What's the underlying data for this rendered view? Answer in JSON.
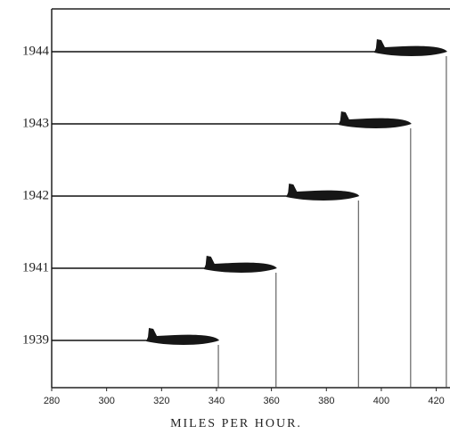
{
  "chart_data": {
    "type": "plane-bar",
    "categories": [
      "1939",
      "1941",
      "1942",
      "1943",
      "1944"
    ],
    "values": [
      341,
      362,
      392,
      411,
      424
    ],
    "xlabel": "MILES PER HOUR.",
    "xlim": [
      280,
      425
    ],
    "xticks": [
      280,
      300,
      320,
      340,
      360,
      380,
      400,
      420
    ],
    "color": "#161616"
  }
}
